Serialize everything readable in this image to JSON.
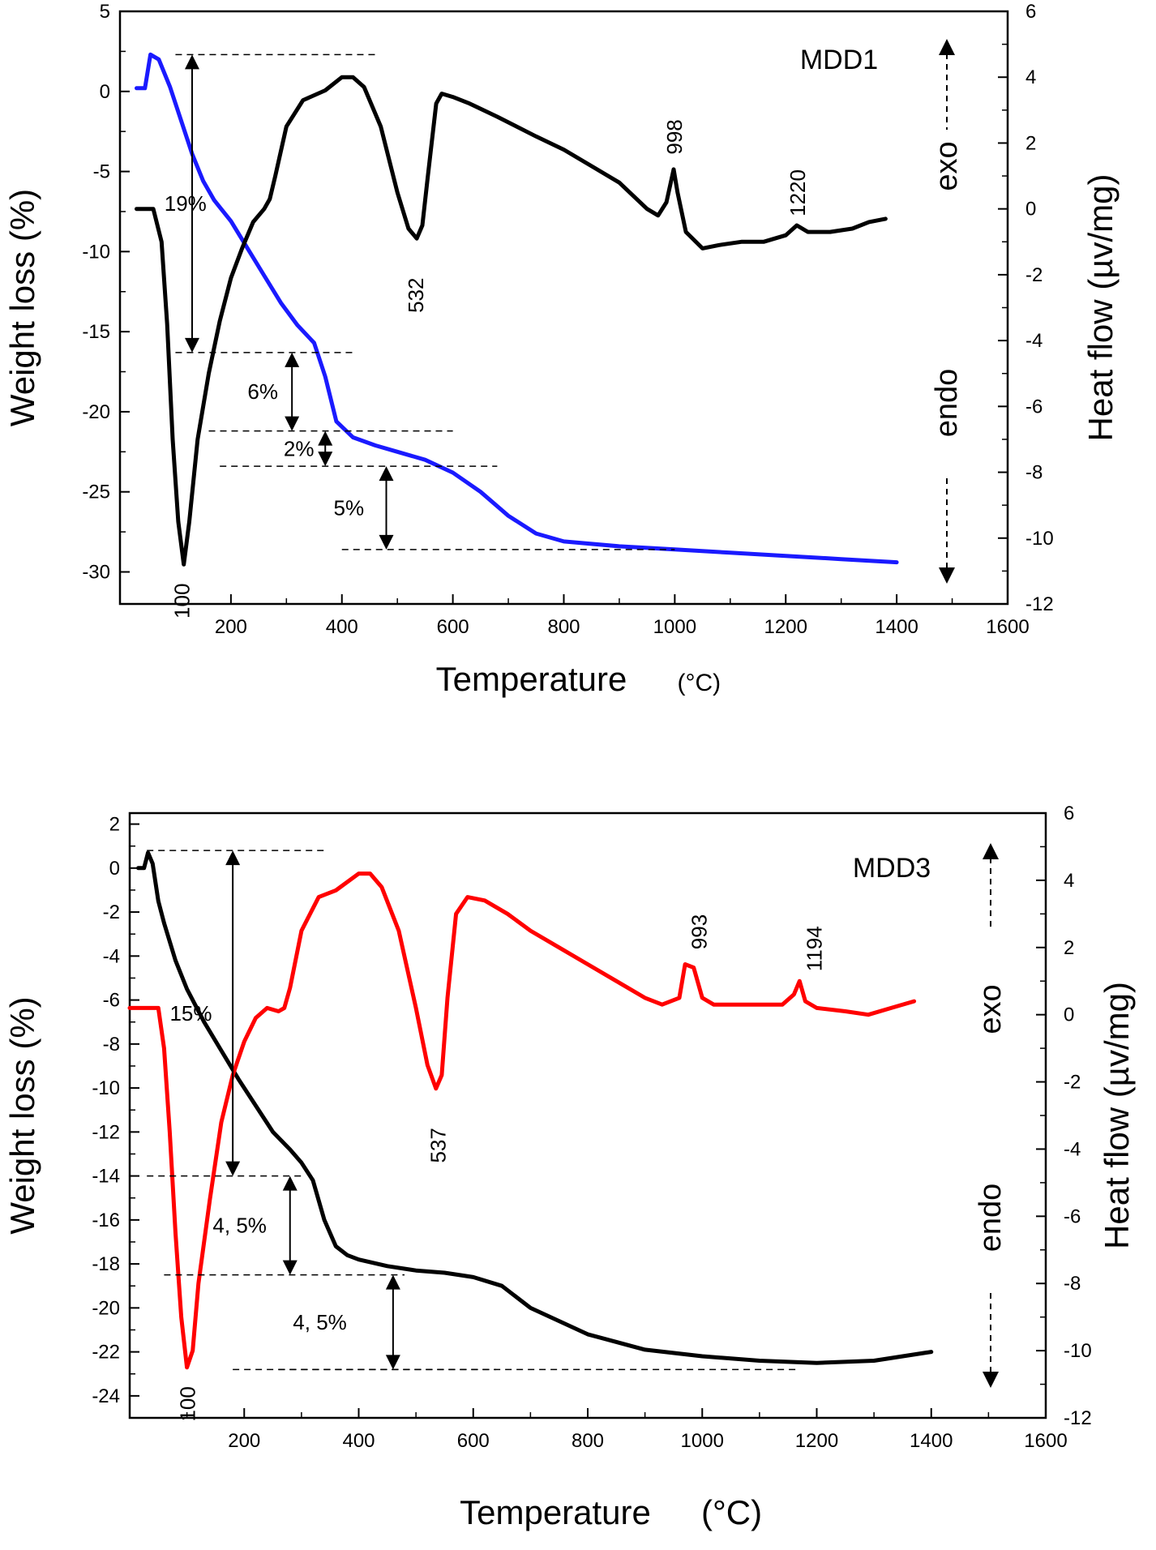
{
  "chart_data": [
    {
      "type": "line",
      "name": "MDD1",
      "xlabel": "Temperature",
      "xunit": "(°C)",
      "ylabel": "Weight loss (%)",
      "y2label": "Heat flow (µv/mg)",
      "xlim": [
        0,
        1600
      ],
      "ylim": [
        -32,
        5
      ],
      "y2lim": [
        -12,
        6
      ],
      "xticks": [
        200,
        400,
        600,
        800,
        1000,
        1200,
        1400,
        1600
      ],
      "yticks": [
        5,
        0,
        -5,
        -10,
        -15,
        -20,
        -25,
        -30
      ],
      "y2ticks": [
        6,
        4,
        2,
        0,
        -2,
        -4,
        -6,
        -8,
        -10,
        -12
      ],
      "exo": "exo",
      "endo": "endo",
      "series": [
        {
          "name": "Weight loss",
          "axis": "left",
          "color": "#1a1aff",
          "x": [
            30,
            45,
            55,
            70,
            90,
            110,
            130,
            150,
            170,
            200,
            230,
            260,
            290,
            320,
            350,
            370,
            390,
            420,
            460,
            500,
            550,
            600,
            650,
            700,
            750,
            800,
            900,
            1000,
            1100,
            1200,
            1300,
            1400
          ],
          "y": [
            0.2,
            0.2,
            2.3,
            2.0,
            0.3,
            -1.8,
            -3.9,
            -5.6,
            -6.8,
            -8.1,
            -9.8,
            -11.5,
            -13.2,
            -14.6,
            -15.7,
            -17.8,
            -20.6,
            -21.6,
            -22.1,
            -22.5,
            -23.0,
            -23.8,
            -25.0,
            -26.5,
            -27.6,
            -28.1,
            -28.4,
            -28.6,
            -28.8,
            -29.0,
            -29.2,
            -29.4
          ]
        },
        {
          "name": "Heat flow",
          "axis": "right",
          "color": "#000000",
          "x": [
            30,
            60,
            75,
            85,
            95,
            105,
            115,
            125,
            140,
            160,
            180,
            200,
            220,
            240,
            260,
            270,
            280,
            300,
            330,
            370,
            400,
            420,
            440,
            470,
            500,
            520,
            535,
            545,
            555,
            570,
            580,
            600,
            630,
            680,
            750,
            800,
            850,
            900,
            950,
            970,
            985,
            998,
            1005,
            1020,
            1050,
            1080,
            1120,
            1160,
            1200,
            1220,
            1240,
            1280,
            1320,
            1350,
            1380
          ],
          "y": [
            0.0,
            0.0,
            -1.0,
            -3.5,
            -7.0,
            -9.5,
            -10.8,
            -9.5,
            -7.0,
            -5.0,
            -3.4,
            -2.1,
            -1.2,
            -0.4,
            0.0,
            0.3,
            1.0,
            2.5,
            3.3,
            3.6,
            4.0,
            4.0,
            3.7,
            2.5,
            0.5,
            -0.6,
            -0.9,
            -0.5,
            1.0,
            3.2,
            3.5,
            3.4,
            3.2,
            2.8,
            2.2,
            1.8,
            1.3,
            0.8,
            0.0,
            -0.2,
            0.2,
            1.2,
            0.5,
            -0.7,
            -1.2,
            -1.1,
            -1.0,
            -1.0,
            -0.8,
            -0.5,
            -0.7,
            -0.7,
            -0.6,
            -0.4,
            -0.3
          ]
        }
      ],
      "peaks": [
        {
          "label": "100",
          "x": 110,
          "y2": -10.8
        },
        {
          "label": "532",
          "x": 532,
          "y2": -0.9
        },
        {
          "label": "998",
          "x": 998,
          "y2": 1.2
        },
        {
          "label": "1220",
          "x": 1220,
          "y2": -0.5
        }
      ],
      "steps": [
        {
          "label": "19%",
          "x": 130,
          "from": 2.3,
          "to": -16.3,
          "lineFrom": 100,
          "lineTo": 420,
          "labelX": 80
        },
        {
          "label": "6%",
          "x": 310,
          "from": -16.3,
          "to": -21.2,
          "lineFrom": 160,
          "lineTo": 600,
          "labelX": 230
        },
        {
          "label": "2%",
          "x": 370,
          "from": -21.2,
          "to": -23.4,
          "lineFrom": 180,
          "lineTo": 680,
          "labelX": 295
        },
        {
          "label": "5%",
          "x": 480,
          "from": -23.4,
          "to": -28.6,
          "lineFrom": 400,
          "lineTo": 1000,
          "labelX": 385
        }
      ]
    },
    {
      "type": "line",
      "name": "MDD3",
      "xlabel": "Temperature",
      "xunit": "(°C)",
      "ylabel": "Weight loss (%)",
      "y2label": "Heat flow (µv/mg)",
      "xlim": [
        0,
        1600
      ],
      "ylim": [
        -25,
        2.5
      ],
      "y2lim": [
        -12,
        6
      ],
      "xticks": [
        200,
        400,
        600,
        800,
        1000,
        1200,
        1400,
        1600
      ],
      "yticks": [
        2,
        0,
        -2,
        -4,
        -6,
        -8,
        -10,
        -12,
        -14,
        -16,
        -18,
        -20,
        -22,
        -24
      ],
      "y2ticks": [
        6,
        4,
        2,
        0,
        -2,
        -4,
        -6,
        -8,
        -10,
        -12
      ],
      "exo": "exo",
      "endo": "endo",
      "series": [
        {
          "name": "Weight loss",
          "axis": "left",
          "color": "#000000",
          "x": [
            15,
            25,
            32,
            40,
            50,
            60,
            80,
            100,
            130,
            160,
            190,
            220,
            250,
            280,
            300,
            320,
            340,
            360,
            380,
            400,
            450,
            500,
            550,
            600,
            650,
            700,
            800,
            900,
            1000,
            1100,
            1200,
            1300,
            1400
          ],
          "y": [
            0.0,
            0.0,
            0.7,
            0.2,
            -1.5,
            -2.5,
            -4.2,
            -5.5,
            -7.0,
            -8.3,
            -9.6,
            -10.8,
            -12.0,
            -12.8,
            -13.4,
            -14.2,
            -16.0,
            -17.2,
            -17.6,
            -17.8,
            -18.1,
            -18.3,
            -18.4,
            -18.6,
            -19.0,
            -20.0,
            -21.2,
            -21.9,
            -22.2,
            -22.4,
            -22.5,
            -22.4,
            -22.0
          ]
        },
        {
          "name": "Heat flow",
          "axis": "right",
          "color": "#ff0000",
          "x": [
            0,
            40,
            50,
            60,
            70,
            80,
            90,
            100,
            110,
            120,
            140,
            160,
            180,
            200,
            220,
            240,
            260,
            270,
            280,
            300,
            330,
            360,
            400,
            420,
            440,
            470,
            500,
            520,
            535,
            545,
            555,
            570,
            590,
            620,
            660,
            700,
            750,
            800,
            850,
            900,
            930,
            960,
            970,
            985,
            1000,
            1020,
            1060,
            1100,
            1140,
            1160,
            1170,
            1180,
            1200,
            1250,
            1290,
            1330,
            1370
          ],
          "y": [
            0.2,
            0.2,
            0.2,
            -1.0,
            -3.5,
            -6.5,
            -9.0,
            -10.5,
            -10.0,
            -8.0,
            -5.5,
            -3.2,
            -1.8,
            -0.8,
            -0.1,
            0.2,
            0.1,
            0.2,
            0.8,
            2.5,
            3.5,
            3.7,
            4.2,
            4.2,
            3.8,
            2.5,
            0.2,
            -1.5,
            -2.2,
            -1.8,
            0.5,
            3.0,
            3.5,
            3.4,
            3.0,
            2.5,
            2.0,
            1.5,
            1.0,
            0.5,
            0.3,
            0.5,
            1.5,
            1.4,
            0.5,
            0.3,
            0.3,
            0.3,
            0.3,
            0.6,
            1.0,
            0.4,
            0.2,
            0.1,
            0.0,
            0.2,
            0.4
          ]
        }
      ],
      "peaks": [
        {
          "label": "100",
          "x": 100,
          "y2": -10.5
        },
        {
          "label": "537",
          "x": 537,
          "y2": -2.2
        },
        {
          "label": "993",
          "x": 993,
          "y2": 1.5
        },
        {
          "label": "1194",
          "x": 1194,
          "y2": 1.0
        }
      ],
      "steps": [
        {
          "label": "15%",
          "x": 180,
          "from": 0.8,
          "to": -14.0,
          "lineFrom": 30,
          "lineTo": 300,
          "labelX": 70
        },
        {
          "label": "4, 5%",
          "x": 280,
          "from": -14.0,
          "to": -18.5,
          "lineFrom": 60,
          "lineTo": 480,
          "labelX": 145
        },
        {
          "label": "4, 5%",
          "x": 460,
          "from": -18.5,
          "to": -22.8,
          "lineFrom": 260,
          "lineTo": 640,
          "labelX": 285
        }
      ],
      "baseline_from": 180,
      "baseline_to": 1170
    }
  ]
}
